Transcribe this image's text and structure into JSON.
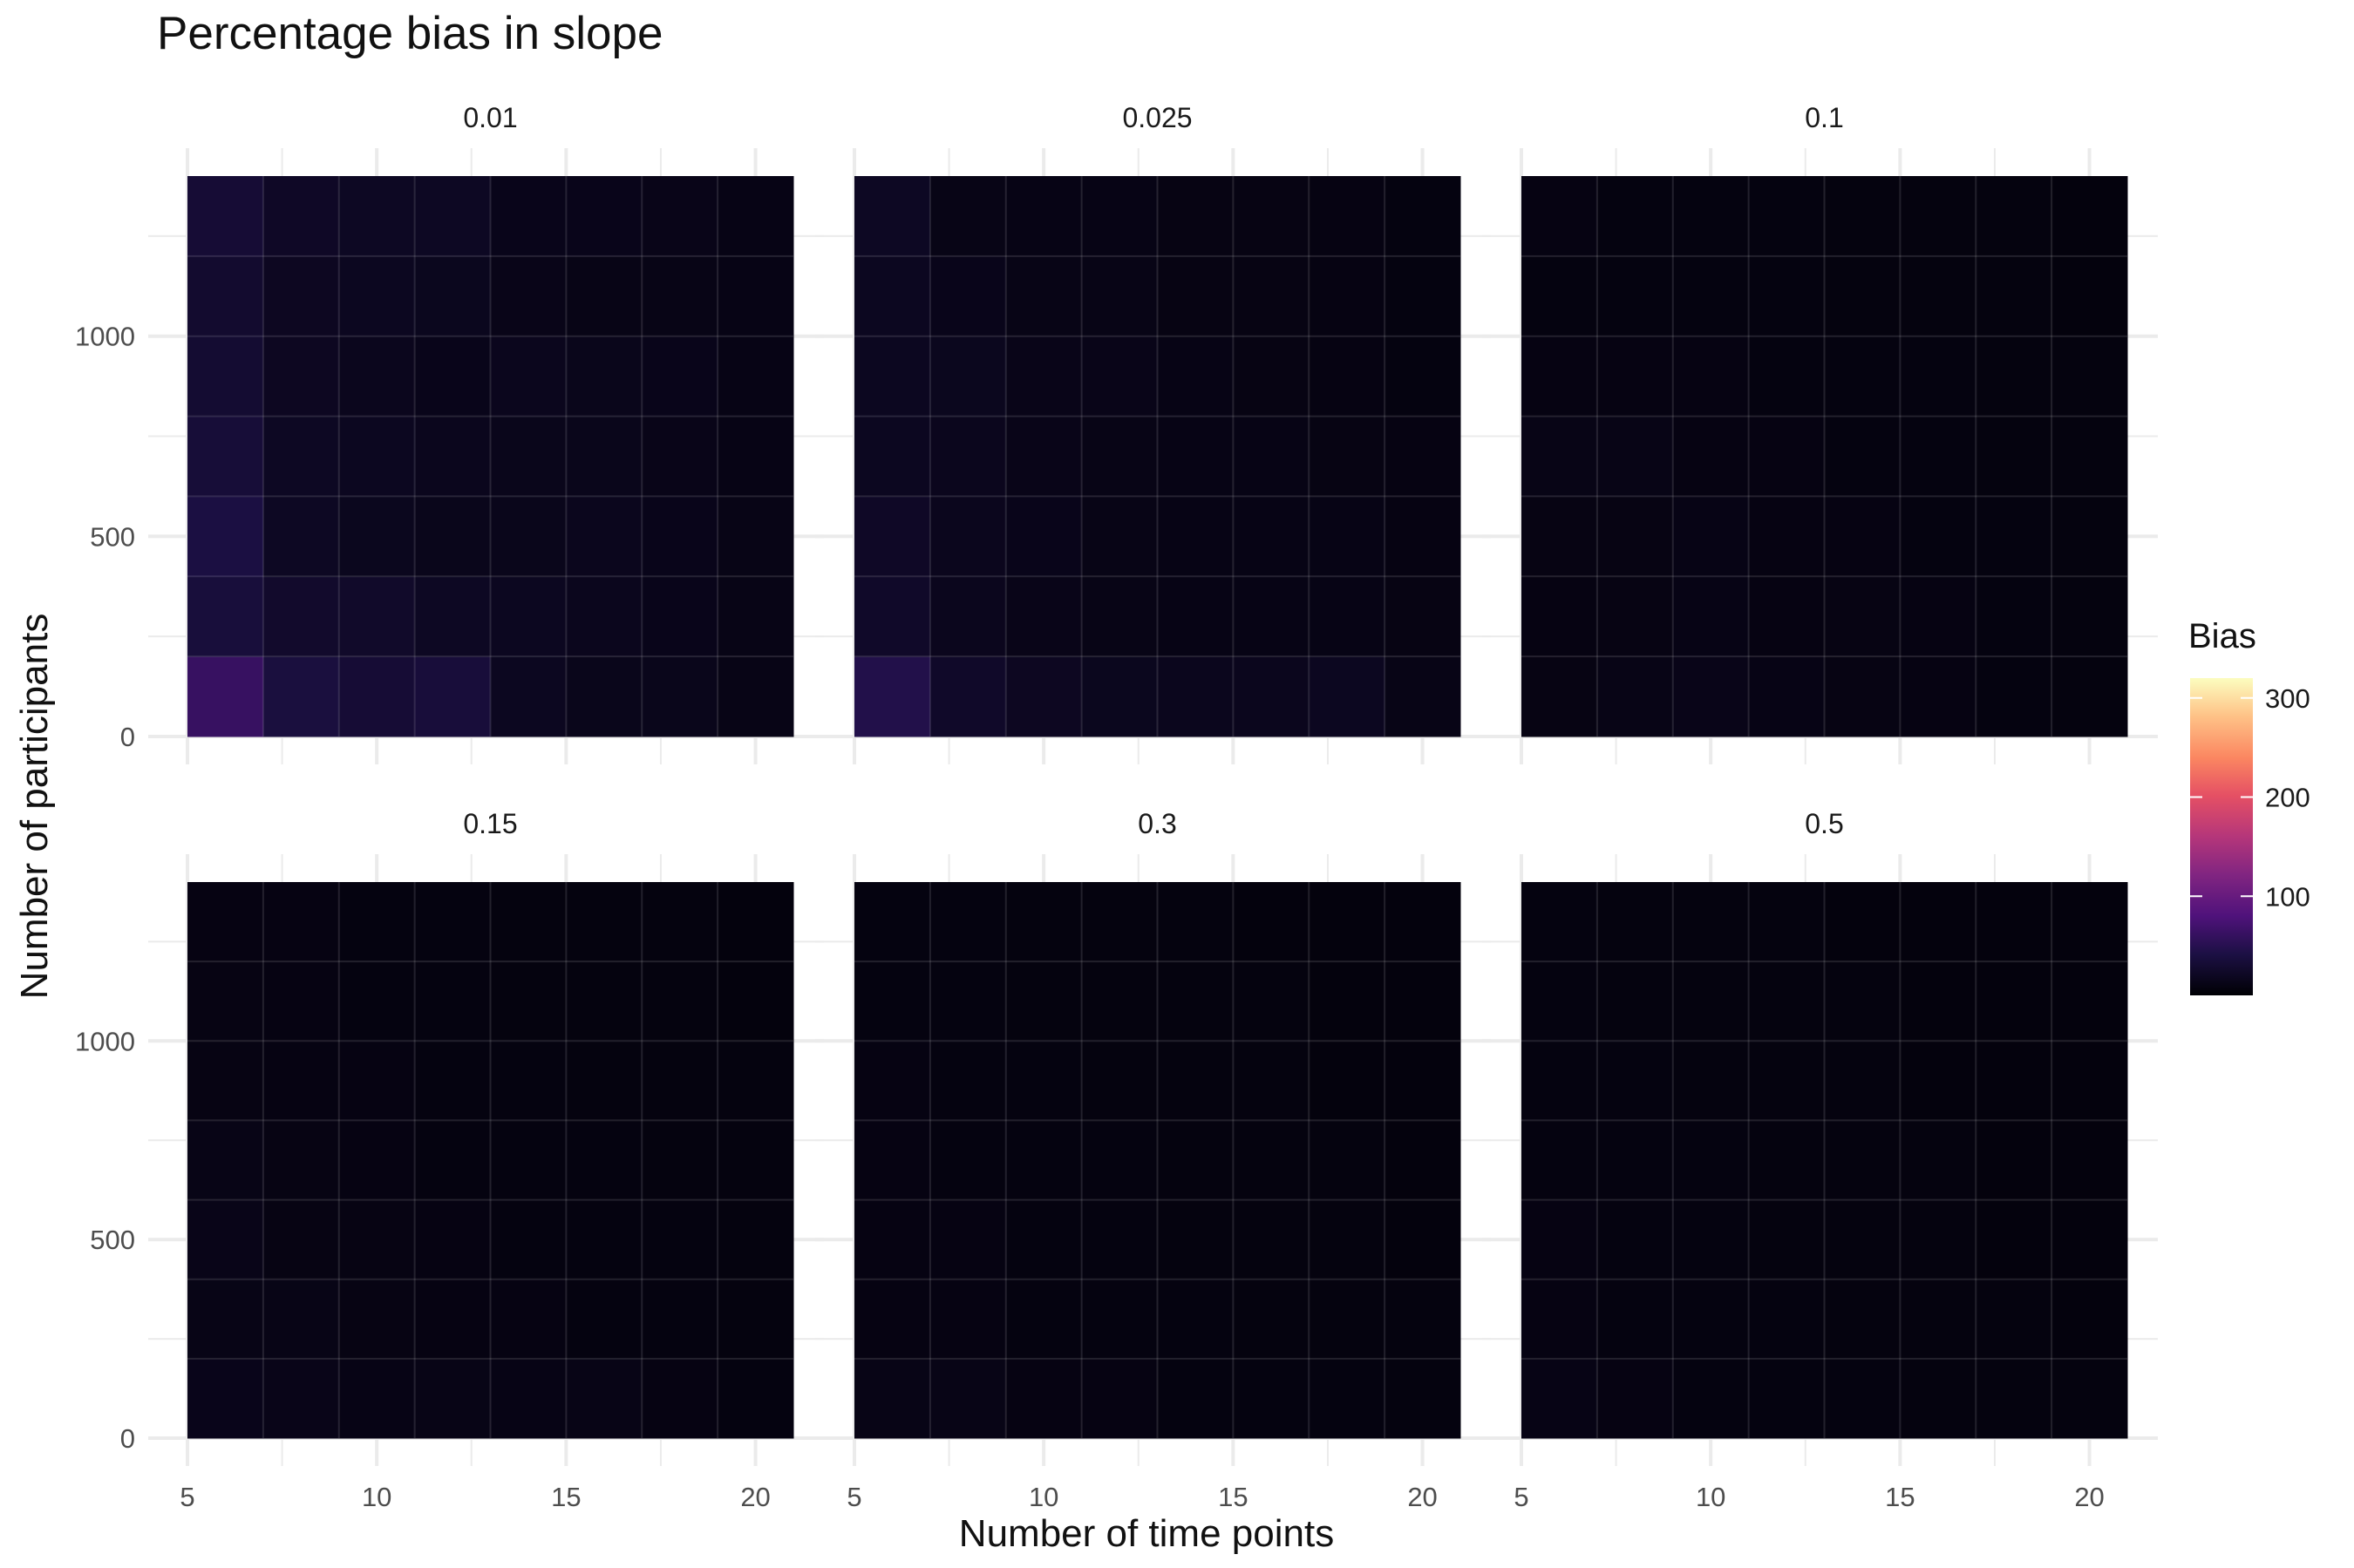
{
  "chart_data": {
    "type": "heatmap",
    "title": "Percentage bias in slope",
    "xlabel": "Number of time points",
    "ylabel": "Number of participants",
    "x_ticks": [
      5,
      10,
      15,
      20
    ],
    "y_ticks": [
      0,
      500,
      1000
    ],
    "x_categories": [
      6,
      8,
      10,
      12,
      14,
      16,
      18,
      20
    ],
    "y_categories": [
      100,
      300,
      500,
      700,
      900,
      1100,
      1300
    ],
    "xlim": [
      5,
      21
    ],
    "ylim": [
      0,
      1400
    ],
    "grid": true,
    "legend": {
      "title": "Bias",
      "position": "right",
      "ticks": [
        100,
        200,
        300
      ],
      "range": [
        0,
        320
      ],
      "palette": "magma"
    },
    "panels": [
      {
        "label": "0.01",
        "values": [
          [
            62,
            38,
            32,
            35,
            18,
            15,
            15,
            12
          ],
          [
            36,
            26,
            25,
            20,
            18,
            16,
            14,
            12
          ],
          [
            40,
            20,
            17,
            15,
            15,
            16,
            14,
            12
          ],
          [
            34,
            20,
            18,
            16,
            15,
            15,
            13,
            11
          ],
          [
            30,
            19,
            16,
            14,
            16,
            15,
            14,
            11
          ],
          [
            28,
            19,
            18,
            17,
            13,
            12,
            12,
            11
          ],
          [
            32,
            22,
            20,
            20,
            14,
            14,
            13,
            11
          ]
        ]
      },
      {
        "label": "0.025",
        "values": [
          [
            46,
            24,
            19,
            17,
            16,
            16,
            18,
            12
          ],
          [
            24,
            16,
            13,
            12,
            11,
            11,
            11,
            10
          ],
          [
            22,
            16,
            14,
            12,
            11,
            11,
            11,
            9
          ],
          [
            18,
            16,
            13,
            12,
            11,
            11,
            10,
            9
          ],
          [
            18,
            17,
            13,
            13,
            11,
            10,
            9,
            8
          ],
          [
            18,
            14,
            12,
            12,
            10,
            10,
            9,
            8
          ],
          [
            20,
            12,
            11,
            11,
            10,
            10,
            9,
            8
          ]
        ]
      },
      {
        "label": "0.1",
        "values": [
          [
            10,
            12,
            13,
            11,
            10,
            9,
            8,
            7
          ],
          [
            9,
            10,
            11,
            9,
            10,
            9,
            8,
            7
          ],
          [
            10,
            10,
            11,
            9,
            9,
            8,
            8,
            7
          ],
          [
            12,
            12,
            9,
            9,
            8,
            8,
            7,
            7
          ],
          [
            9,
            9,
            9,
            8,
            8,
            8,
            7,
            7
          ],
          [
            8,
            8,
            8,
            8,
            7,
            7,
            7,
            6
          ],
          [
            9,
            8,
            8,
            8,
            7,
            7,
            7,
            6
          ]
        ]
      },
      {
        "label": "0.15",
        "values": [
          [
            14,
            13,
            11,
            12,
            11,
            12,
            9,
            8
          ],
          [
            12,
            12,
            10,
            9,
            9,
            8,
            8,
            7
          ],
          [
            13,
            10,
            10,
            9,
            8,
            8,
            8,
            7
          ],
          [
            12,
            10,
            9,
            8,
            8,
            8,
            7,
            7
          ],
          [
            10,
            9,
            9,
            8,
            8,
            7,
            7,
            7
          ],
          [
            10,
            9,
            8,
            8,
            7,
            7,
            7,
            6
          ],
          [
            9,
            9,
            8,
            8,
            7,
            7,
            7,
            6
          ]
        ]
      },
      {
        "label": "0.3",
        "values": [
          [
            12,
            12,
            9,
            9,
            8,
            8,
            8,
            7
          ],
          [
            9,
            9,
            8,
            8,
            8,
            7,
            7,
            7
          ],
          [
            9,
            9,
            8,
            8,
            7,
            7,
            7,
            6
          ],
          [
            9,
            8,
            8,
            8,
            7,
            7,
            7,
            6
          ],
          [
            9,
            8,
            8,
            7,
            7,
            7,
            6,
            6
          ],
          [
            8,
            8,
            7,
            7,
            7,
            7,
            6,
            6
          ],
          [
            8,
            8,
            7,
            7,
            7,
            6,
            6,
            6
          ]
        ]
      },
      {
        "label": "0.5",
        "values": [
          [
            11,
            9,
            8,
            8,
            8,
            7,
            7,
            7
          ],
          [
            9,
            8,
            8,
            8,
            7,
            7,
            7,
            6
          ],
          [
            9,
            8,
            8,
            7,
            7,
            7,
            6,
            6
          ],
          [
            8,
            8,
            8,
            7,
            7,
            7,
            6,
            6
          ],
          [
            8,
            8,
            7,
            7,
            7,
            6,
            6,
            6
          ],
          [
            8,
            7,
            7,
            7,
            7,
            6,
            6,
            6
          ],
          [
            8,
            7,
            7,
            7,
            6,
            6,
            6,
            6
          ]
        ]
      }
    ]
  }
}
